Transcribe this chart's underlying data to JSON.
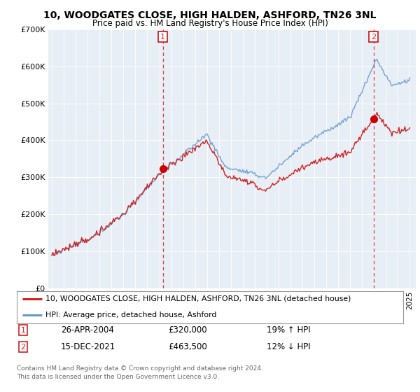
{
  "title": "10, WOODGATES CLOSE, HIGH HALDEN, ASHFORD, TN26 3NL",
  "subtitle": "Price paid vs. HM Land Registry's House Price Index (HPI)",
  "legend_line1": "10, WOODGATES CLOSE, HIGH HALDEN, ASHFORD, TN26 3NL (detached house)",
  "legend_line2": "HPI: Average price, detached house, Ashford",
  "sale1_date": "26-APR-2004",
  "sale1_price": "£320,000",
  "sale1_hpi": "19% ↑ HPI",
  "sale1_year": 2004.3,
  "sale1_value": 320000,
  "sale2_date": "15-DEC-2021",
  "sale2_price": "£463,500",
  "sale2_hpi": "12% ↓ HPI",
  "sale2_year": 2021.96,
  "sale2_value": 463500,
  "footer": "Contains HM Land Registry data © Crown copyright and database right 2024.\nThis data is licensed under the Open Government Licence v3.0.",
  "hpi_color": "#6699cc",
  "price_color": "#cc2222",
  "background_color": "#ffffff",
  "plot_bg_color": "#e8eef5",
  "ylim": [
    0,
    700000
  ],
  "yticks": [
    0,
    100000,
    200000,
    300000,
    400000,
    500000,
    600000,
    700000
  ],
  "ytick_labels": [
    "£0",
    "£100K",
    "£200K",
    "£300K",
    "£400K",
    "£500K",
    "£600K",
    "£700K"
  ],
  "xlim_start": 1994.7,
  "xlim_end": 2025.5
}
